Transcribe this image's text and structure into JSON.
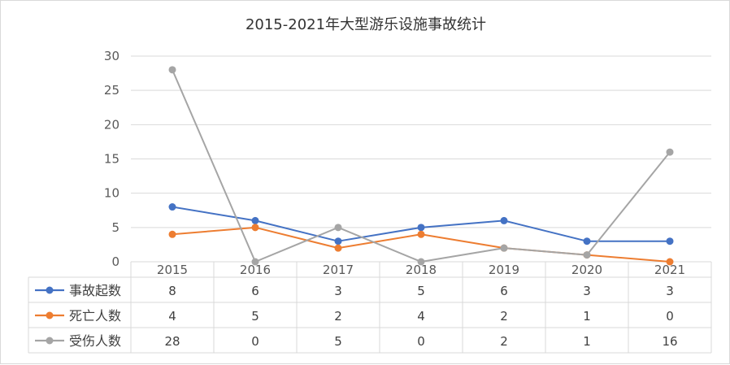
{
  "chart_data": {
    "type": "line",
    "title": "2015-2021年大型游乐设施事故统计",
    "categories": [
      "2015",
      "2016",
      "2017",
      "2018",
      "2019",
      "2020",
      "2021"
    ],
    "ylim": [
      0,
      30
    ],
    "yticks": [
      0,
      5,
      10,
      15,
      20,
      25,
      30
    ],
    "grid": true,
    "legend": "data-table",
    "series": [
      {
        "name": "事故起数",
        "color": "#4472c4",
        "values": [
          8,
          6,
          3,
          5,
          6,
          3,
          3
        ]
      },
      {
        "name": "死亡人数",
        "color": "#ed7d31",
        "values": [
          4,
          5,
          2,
          4,
          2,
          1,
          0
        ]
      },
      {
        "name": "受伤人数",
        "color": "#a5a5a5",
        "values": [
          28,
          0,
          5,
          0,
          2,
          1,
          16
        ]
      }
    ]
  }
}
